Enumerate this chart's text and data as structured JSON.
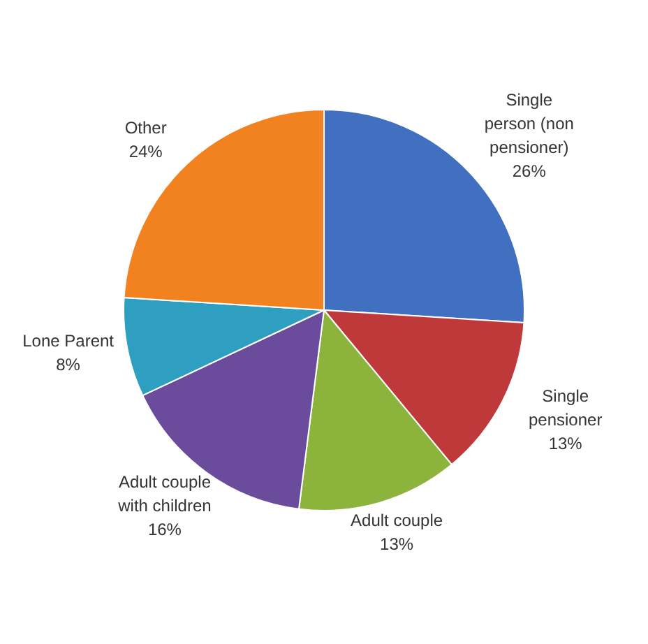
{
  "chart_data": {
    "type": "pie",
    "categories": [
      "Single person (non pensioner)",
      "Single pensioner",
      "Adult couple",
      "Adult couple with children",
      "Lone Parent",
      "Other"
    ],
    "values": [
      26,
      13,
      13,
      16,
      8,
      24
    ],
    "value_labels": [
      "26%",
      "13%",
      "13%",
      "16%",
      "8%",
      "24%"
    ],
    "colors": [
      "#4170c0",
      "#c0393a",
      "#8cb33c",
      "#6b4b9c",
      "#2e9fc0",
      "#f2821f"
    ],
    "legend": false
  }
}
